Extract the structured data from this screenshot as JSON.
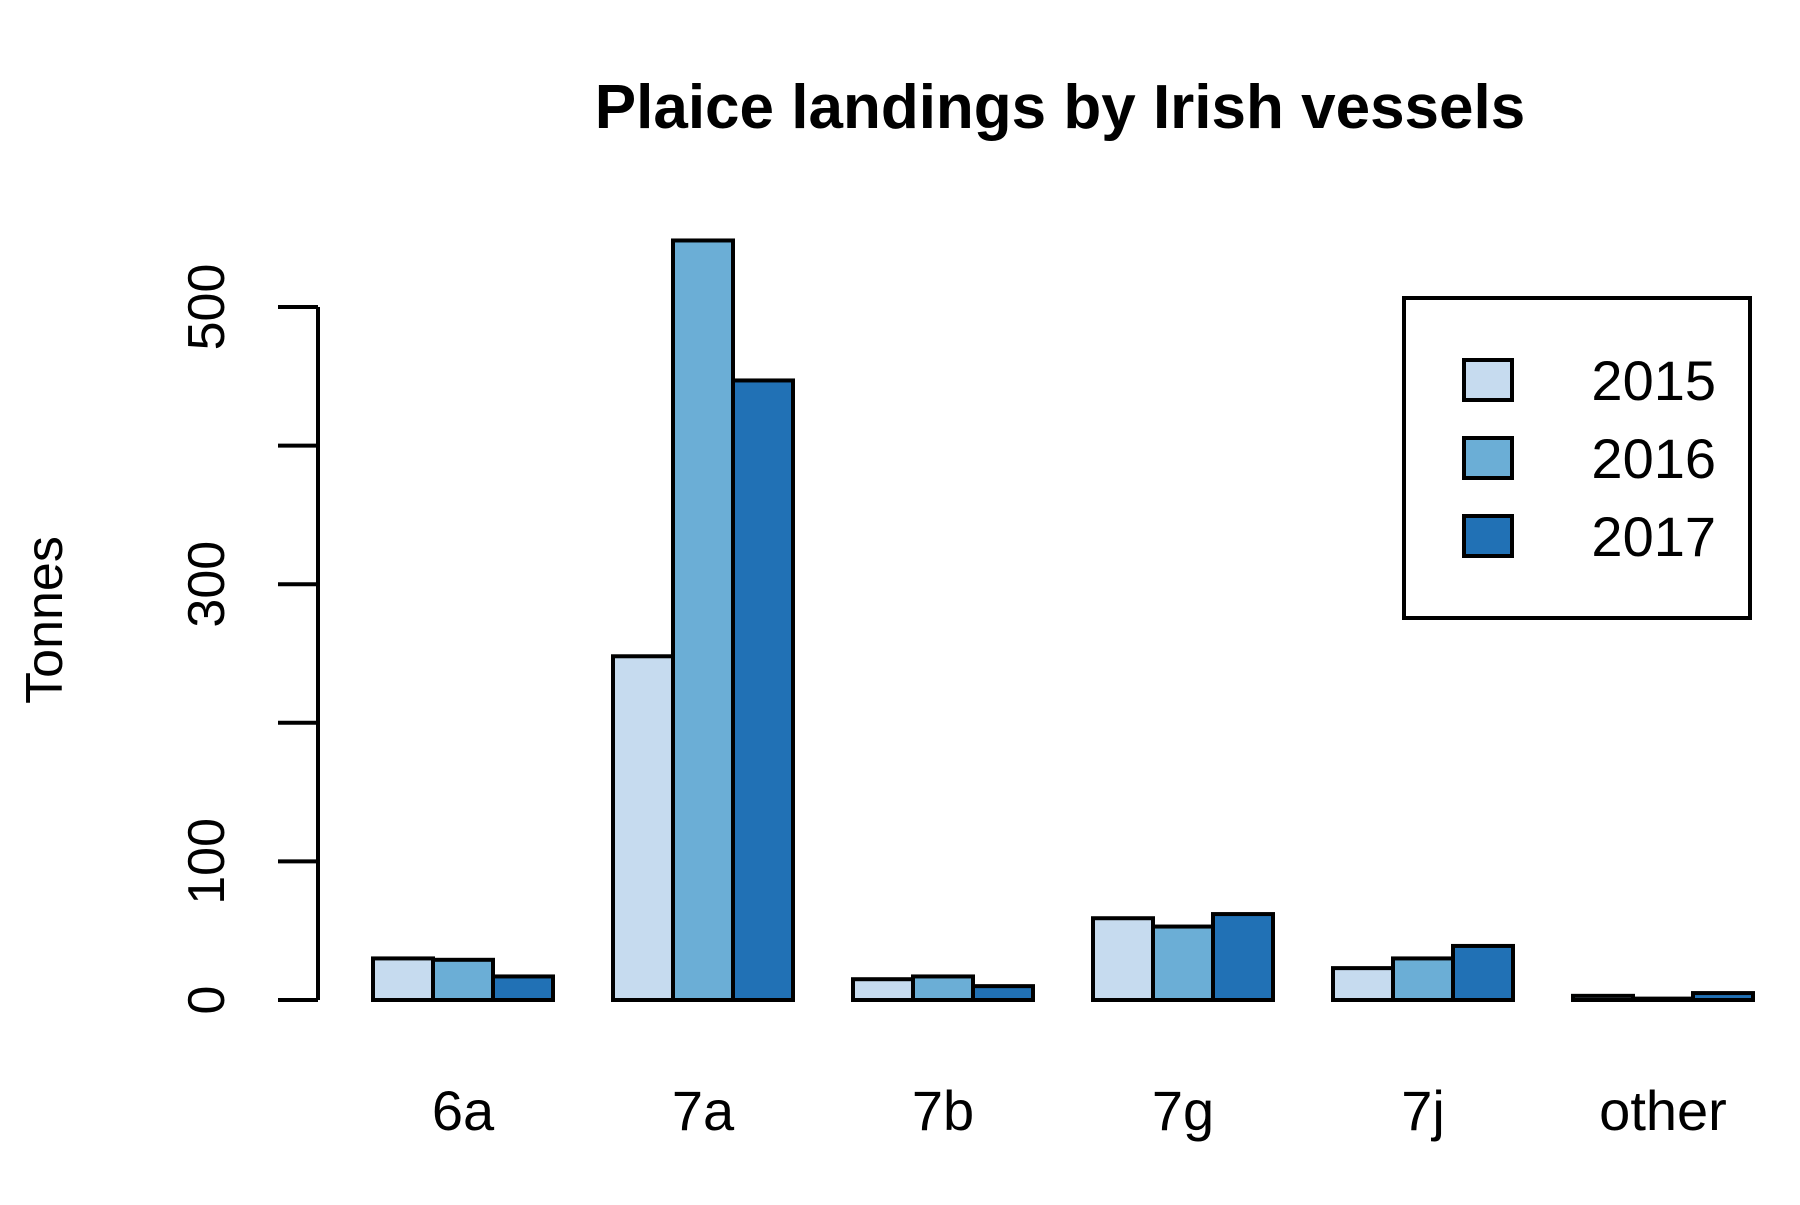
{
  "chart_data": {
    "type": "bar",
    "title": "Plaice landings by Irish vessels",
    "xlabel": "",
    "ylabel": "Tonnes",
    "categories": [
      "6a",
      "7a",
      "7b",
      "7g",
      "7j",
      "other"
    ],
    "series": [
      {
        "name": "2015",
        "color": "#c6dbef",
        "values": [
          30,
          248,
          15,
          59,
          23,
          3
        ]
      },
      {
        "name": "2016",
        "color": "#6baed6",
        "values": [
          29,
          548,
          17,
          53,
          30,
          1
        ]
      },
      {
        "name": "2017",
        "color": "#2171b5",
        "values": [
          17,
          447,
          10,
          62,
          39,
          5
        ]
      }
    ],
    "ylim": [
      0,
      550
    ],
    "yticks": [
      0,
      100,
      200,
      300,
      400,
      500
    ],
    "ytick_labels": [
      "0",
      "100",
      "",
      "300",
      "",
      "500"
    ],
    "grid": false,
    "legend_position": "top-right",
    "legend_entries": [
      "2015",
      "2016",
      "2017"
    ]
  }
}
